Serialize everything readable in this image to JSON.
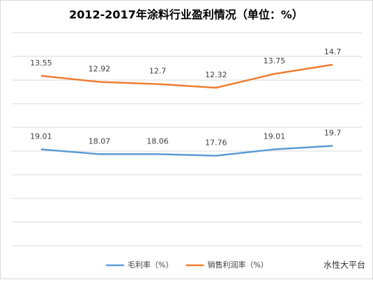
{
  "chart_data": {
    "type": "line",
    "title": "2012-2017年涂料行业盈利情况（单位：%）",
    "categories": [
      null,
      null,
      null,
      null,
      null,
      null
    ],
    "series": [
      {
        "name": "毛利率（%）",
        "color": "#5b9bd5",
        "values": [
          19.01,
          18.07,
          18.06,
          17.76,
          19.01,
          19.7
        ]
      },
      {
        "name": "销售利润率（%）",
        "color": "#ed7d31",
        "axis": "y2",
        "values": [
          13.55,
          12.92,
          12.7,
          12.32,
          13.75,
          14.7
        ]
      }
    ],
    "ylim": [
      0,
      42
    ],
    "y2lim": [
      -4,
      18
    ],
    "grid": true,
    "legend": "bottom",
    "watermark": "水性大平台"
  }
}
